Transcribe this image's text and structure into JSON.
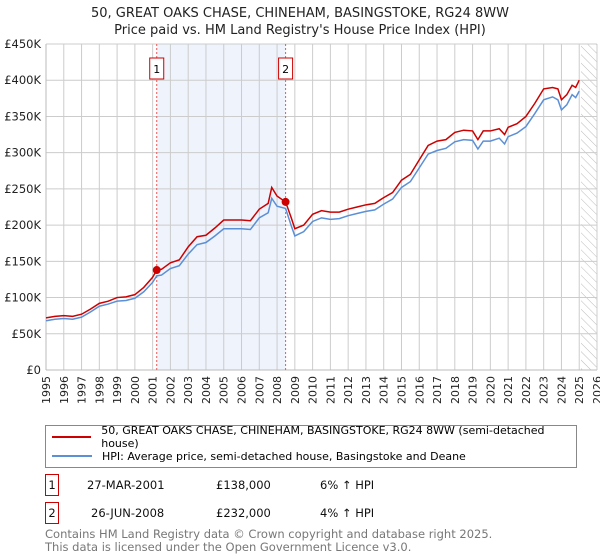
{
  "title": "50, GREAT OAKS CHASE, CHINEHAM, BASINGSTOKE, RG24 8WW",
  "subtitle": "Price paid vs. HM Land Registry's House Price Index (HPI)",
  "legend": {
    "property": "50, GREAT OAKS CHASE, CHINEHAM, BASINGSTOKE, RG24 8WW (semi-detached house)",
    "hpi": "HPI: Average price, semi-detached house, Basingstoke and Deane"
  },
  "transactions": [
    {
      "num": "1",
      "date": "27-MAR-2001",
      "price": "£138,000",
      "delta": "6% ↑ HPI"
    },
    {
      "num": "2",
      "date": "26-JUN-2008",
      "price": "£232,000",
      "delta": "4% ↑ HPI"
    }
  ],
  "footer": [
    "Contains HM Land Registry data © Crown copyright and database right 2025.",
    "This data is licensed under the Open Government Licence v3.0."
  ],
  "colors": {
    "property": "#cc0000",
    "hpi": "#5b8fd6",
    "shade": "#eef3fc"
  },
  "chart_data": {
    "type": "line",
    "xlim": [
      1995,
      2026
    ],
    "ylim": [
      0,
      450000
    ],
    "yticks": [
      0,
      50000,
      100000,
      150000,
      200000,
      250000,
      300000,
      350000,
      400000,
      450000
    ],
    "ytick_labels": [
      "£0",
      "£50K",
      "£100K",
      "£150K",
      "£200K",
      "£250K",
      "£300K",
      "£350K",
      "£400K",
      "£450K"
    ],
    "xticks": [
      1995,
      1996,
      1997,
      1998,
      1999,
      2000,
      2001,
      2002,
      2003,
      2004,
      2005,
      2006,
      2007,
      2008,
      2009,
      2010,
      2011,
      2012,
      2013,
      2014,
      2015,
      2016,
      2017,
      2018,
      2019,
      2020,
      2021,
      2022,
      2023,
      2024,
      2025,
      2026
    ],
    "shaded_range": [
      2001.23,
      2008.48
    ],
    "forecast_hatch_from": 2025.1,
    "sales": [
      {
        "label": "1",
        "x": 2001.23,
        "y": 138000
      },
      {
        "label": "2",
        "x": 2008.48,
        "y": 232000
      }
    ],
    "series": [
      {
        "name": "property",
        "x": [
          1995,
          1995.5,
          1996,
          1996.5,
          1997,
          1997.5,
          1998,
          1998.5,
          1999,
          1999.5,
          2000,
          2000.5,
          2001,
          2001.23,
          2001.5,
          2002,
          2002.5,
          2003,
          2003.5,
          2004,
          2004.5,
          2005,
          2005.5,
          2006,
          2006.5,
          2007,
          2007.5,
          2007.7,
          2008,
          2008.48,
          2008.8,
          2009,
          2009.5,
          2010,
          2010.5,
          2011,
          2011.5,
          2012,
          2012.5,
          2013,
          2013.5,
          2014,
          2014.5,
          2015,
          2015.5,
          2016,
          2016.5,
          2017,
          2017.5,
          2018,
          2018.5,
          2019,
          2019.3,
          2019.6,
          2020,
          2020.5,
          2020.8,
          2021,
          2021.5,
          2022,
          2022.5,
          2023,
          2023.5,
          2023.8,
          2024,
          2024.3,
          2024.6,
          2024.8,
          2025
        ],
        "y": [
          72000,
          74000,
          75000,
          74000,
          77000,
          84000,
          92000,
          95000,
          100000,
          101000,
          104000,
          114000,
          128000,
          138000,
          139000,
          148000,
          152000,
          170000,
          184000,
          186000,
          196000,
          207000,
          207000,
          207000,
          206000,
          222000,
          230000,
          252000,
          240000,
          232000,
          210000,
          195000,
          200000,
          215000,
          220000,
          218000,
          218000,
          222000,
          225000,
          228000,
          230000,
          238000,
          245000,
          262000,
          270000,
          290000,
          310000,
          316000,
          318000,
          328000,
          331000,
          330000,
          318000,
          330000,
          330000,
          333000,
          325000,
          335000,
          340000,
          350000,
          368000,
          388000,
          390000,
          388000,
          373000,
          380000,
          393000,
          390000,
          400000
        ]
      },
      {
        "name": "hpi",
        "x": [
          1995,
          1995.5,
          1996,
          1996.5,
          1997,
          1997.5,
          1998,
          1998.5,
          1999,
          1999.5,
          2000,
          2000.5,
          2001,
          2001.23,
          2001.5,
          2002,
          2002.5,
          2003,
          2003.5,
          2004,
          2004.5,
          2005,
          2005.5,
          2006,
          2006.5,
          2007,
          2007.5,
          2007.7,
          2008,
          2008.48,
          2008.8,
          2009,
          2009.5,
          2010,
          2010.5,
          2011,
          2011.5,
          2012,
          2012.5,
          2013,
          2013.5,
          2014,
          2014.5,
          2015,
          2015.5,
          2016,
          2016.5,
          2017,
          2017.5,
          2018,
          2018.5,
          2019,
          2019.3,
          2019.6,
          2020,
          2020.5,
          2020.8,
          2021,
          2021.5,
          2022,
          2022.5,
          2023,
          2023.5,
          2023.8,
          2024,
          2024.3,
          2024.6,
          2024.8,
          2025
        ],
        "y": [
          68000,
          70000,
          71000,
          70000,
          73000,
          80000,
          88000,
          91000,
          95000,
          96000,
          99000,
          108000,
          121000,
          130000,
          131000,
          140000,
          144000,
          160000,
          173000,
          176000,
          185000,
          195000,
          195000,
          195000,
          194000,
          210000,
          217000,
          237000,
          226000,
          223000,
          199000,
          185000,
          191000,
          205000,
          210000,
          208000,
          209000,
          213000,
          216000,
          219000,
          221000,
          229000,
          236000,
          252000,
          260000,
          279000,
          298000,
          303000,
          306000,
          315000,
          318000,
          317000,
          305000,
          316000,
          316000,
          320000,
          312000,
          322000,
          327000,
          336000,
          354000,
          373000,
          377000,
          373000,
          359000,
          366000,
          380000,
          376000,
          385000
        ]
      }
    ]
  }
}
